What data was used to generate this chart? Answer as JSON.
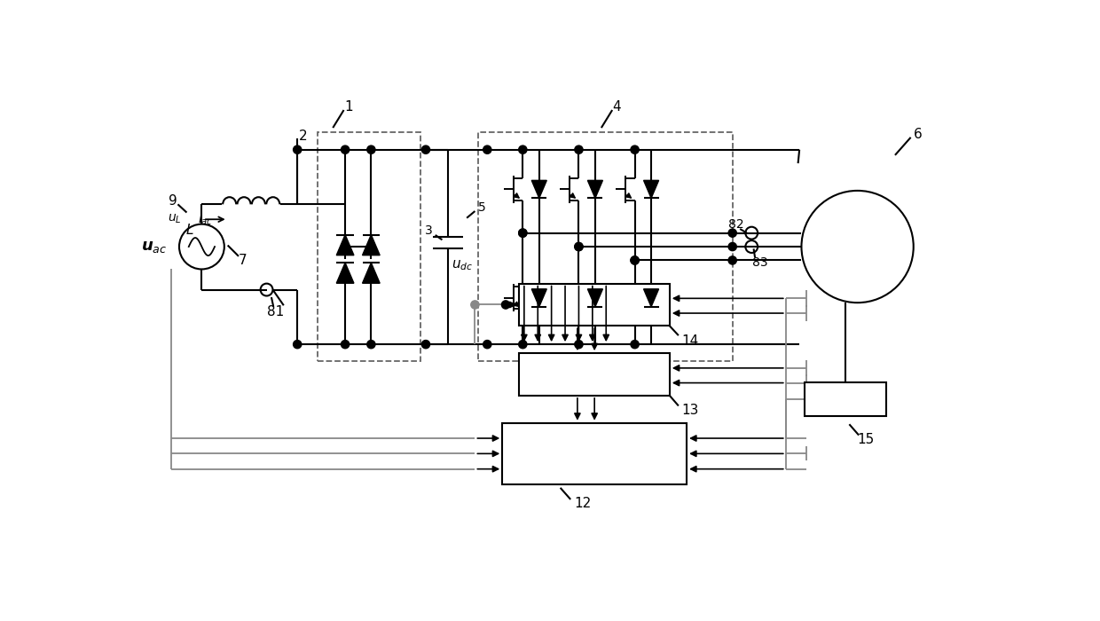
{
  "bg": "#ffffff",
  "lc": "#000000",
  "gc": "#888888",
  "dc": "#666666",
  "fw": 12.4,
  "fh": 7.0,
  "lw": 1.5,
  "lw_thin": 1.2
}
